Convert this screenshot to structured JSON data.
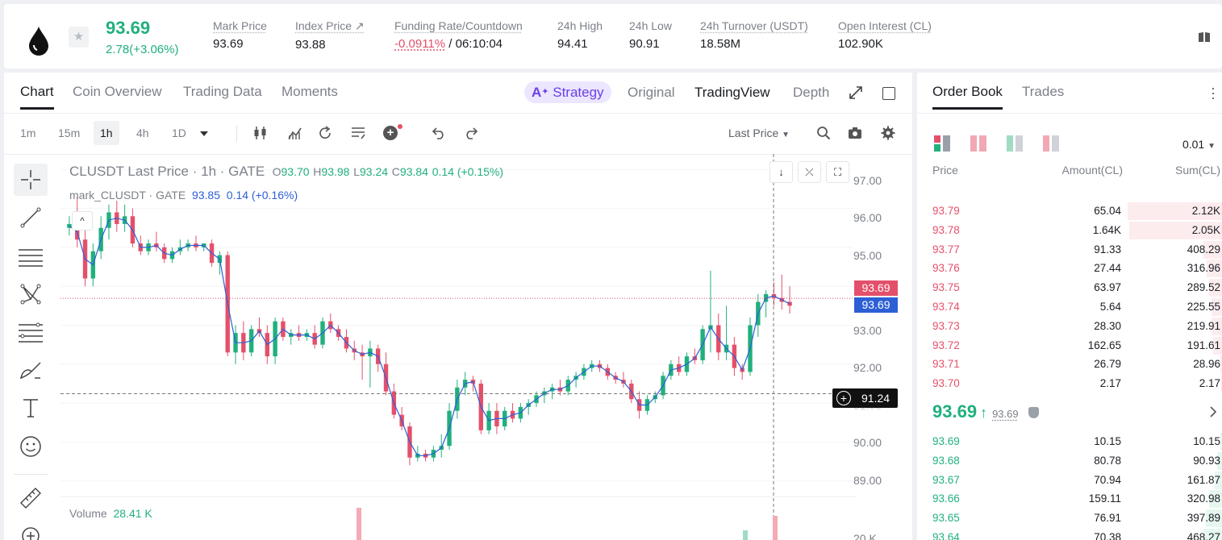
{
  "ticker": {
    "last_price": "93.69",
    "change": "2.78(+3.06%)",
    "stats": [
      {
        "label": "Mark Price",
        "value": "93.69"
      },
      {
        "label": "Index Price ↗",
        "value": "93.88"
      },
      {
        "label": "Funding Rate/Countdown",
        "value_neg": "-0.0911%",
        "value": " / 06:10:04"
      },
      {
        "label": "24h High",
        "value": "94.41"
      },
      {
        "label": "24h Low",
        "value": "90.91"
      },
      {
        "label": "24h Turnover (USDT)",
        "value": "18.58M"
      },
      {
        "label": "Open Interest (CL)",
        "value": "102.90K"
      }
    ]
  },
  "chart_tabs": [
    "Chart",
    "Coin Overview",
    "Trading Data",
    "Moments"
  ],
  "strategy_label": "Strategy",
  "chart_modes": [
    "Original",
    "TradingView",
    "Depth"
  ],
  "intervals": [
    "1m",
    "15m",
    "1h",
    "4h",
    "1D"
  ],
  "price_source": "Last Price",
  "legend": {
    "title": "CLUSDT Last Price · 1h · GATE",
    "open_k": "O",
    "open": "93.70",
    "high_k": "H",
    "high": "93.98",
    "low_k": "L",
    "low": "93.24",
    "close_k": "C",
    "close": "93.84",
    "change": "0.14 (+0.15%)",
    "mark_label": "mark_CLUSDT · GATE",
    "mark_value": "93.85",
    "mark_change": "0.14 (+0.16%)"
  },
  "volume": {
    "label": "Volume",
    "value": "28.41 K",
    "axis_label": "20 K"
  },
  "y_axis_ticks": [
    "97.00",
    "96.00",
    "95.00",
    "93.00",
    "92.00",
    "91.00",
    "90.00",
    "89.00"
  ],
  "price_tags": {
    "last": "93.69",
    "mark": "93.69",
    "crosshair": "91.24"
  },
  "colors": {
    "up": "#21b07d",
    "down": "#e4506a",
    "accent": "#6b3fe8",
    "mark": "#2c5fd6"
  },
  "chart_data": {
    "type": "candlestick",
    "interval": "1h",
    "ylim": [
      88.6,
      97.4
    ],
    "y_ticks": [
      97,
      96,
      95,
      94,
      93,
      92,
      91,
      90,
      89
    ],
    "candles": [
      [
        95.5,
        95.8,
        95.3,
        95.6
      ],
      [
        95.6,
        96.3,
        95.0,
        95.2
      ],
      [
        95.2,
        95.6,
        94.0,
        94.2
      ],
      [
        94.2,
        95.1,
        94.0,
        94.9
      ],
      [
        94.9,
        95.8,
        94.7,
        95.5
      ],
      [
        95.5,
        96.1,
        95.2,
        95.9
      ],
      [
        95.9,
        96.2,
        95.4,
        95.6
      ],
      [
        95.6,
        96.1,
        95.4,
        95.8
      ],
      [
        95.8,
        96.0,
        95.0,
        95.1
      ],
      [
        95.1,
        95.3,
        94.8,
        94.9
      ],
      [
        94.9,
        95.2,
        94.8,
        95.1
      ],
      [
        95.1,
        95.4,
        94.9,
        95.0
      ],
      [
        95.0,
        95.1,
        94.6,
        94.7
      ],
      [
        94.7,
        95.0,
        94.6,
        94.9
      ],
      [
        94.9,
        95.2,
        94.8,
        95.0
      ],
      [
        95.0,
        95.2,
        94.9,
        95.1
      ],
      [
        95.1,
        95.3,
        94.9,
        95.0
      ],
      [
        95.0,
        95.1,
        94.9,
        95.1
      ],
      [
        95.1,
        95.2,
        94.5,
        94.6
      ],
      [
        94.6,
        94.9,
        94.3,
        94.8
      ],
      [
        94.8,
        94.9,
        92.2,
        92.3
      ],
      [
        92.3,
        93.0,
        92.0,
        92.8
      ],
      [
        92.8,
        93.1,
        92.1,
        92.3
      ],
      [
        92.3,
        93.0,
        92.2,
        92.9
      ],
      [
        92.9,
        93.2,
        92.7,
        92.8
      ],
      [
        92.8,
        93.0,
        92.0,
        92.2
      ],
      [
        92.2,
        93.2,
        92.0,
        93.1
      ],
      [
        93.1,
        93.2,
        92.6,
        92.7
      ],
      [
        92.7,
        92.9,
        92.5,
        92.8
      ],
      [
        92.8,
        93.0,
        92.6,
        92.7
      ],
      [
        92.7,
        92.9,
        92.6,
        92.8
      ],
      [
        92.8,
        93.0,
        92.4,
        92.5
      ],
      [
        92.5,
        93.2,
        92.4,
        93.1
      ],
      [
        93.1,
        93.3,
        92.8,
        92.9
      ],
      [
        92.9,
        93.0,
        92.6,
        92.7
      ],
      [
        92.7,
        92.9,
        92.3,
        92.4
      ],
      [
        92.4,
        92.6,
        92.1,
        92.3
      ],
      [
        92.3,
        92.5,
        91.6,
        92.2
      ],
      [
        92.2,
        92.6,
        91.4,
        92.4
      ],
      [
        92.4,
        92.5,
        91.8,
        92.0
      ],
      [
        92.0,
        92.3,
        91.2,
        91.3
      ],
      [
        91.3,
        91.5,
        90.6,
        90.7
      ],
      [
        90.7,
        90.9,
        90.3,
        90.4
      ],
      [
        90.4,
        90.5,
        89.4,
        89.6
      ],
      [
        89.6,
        89.9,
        89.5,
        89.7
      ],
      [
        89.7,
        89.8,
        89.5,
        89.6
      ],
      [
        89.6,
        89.9,
        89.5,
        89.8
      ],
      [
        89.8,
        90.2,
        89.6,
        89.9
      ],
      [
        89.9,
        91.0,
        89.8,
        90.8
      ],
      [
        90.8,
        91.6,
        90.6,
        91.4
      ],
      [
        91.4,
        91.8,
        91.2,
        91.6
      ],
      [
        91.6,
        91.7,
        91.3,
        91.5
      ],
      [
        91.5,
        91.6,
        90.2,
        90.3
      ],
      [
        90.3,
        91.0,
        90.2,
        90.8
      ],
      [
        90.8,
        91.0,
        90.2,
        90.4
      ],
      [
        90.4,
        90.9,
        90.3,
        90.8
      ],
      [
        90.8,
        91.0,
        90.5,
        90.6
      ],
      [
        90.6,
        91.0,
        90.5,
        90.9
      ],
      [
        90.9,
        91.1,
        90.7,
        91.0
      ],
      [
        91.0,
        91.3,
        90.9,
        91.2
      ],
      [
        91.2,
        91.4,
        91.0,
        91.3
      ],
      [
        91.3,
        91.5,
        91.1,
        91.4
      ],
      [
        91.4,
        91.6,
        91.2,
        91.3
      ],
      [
        91.3,
        91.7,
        91.2,
        91.6
      ],
      [
        91.6,
        91.8,
        91.4,
        91.7
      ],
      [
        91.7,
        92.0,
        91.6,
        91.9
      ],
      [
        91.9,
        92.1,
        91.8,
        92.0
      ],
      [
        92.0,
        92.1,
        91.8,
        91.9
      ],
      [
        91.9,
        92.0,
        91.6,
        91.7
      ],
      [
        91.7,
        91.8,
        91.5,
        91.6
      ],
      [
        91.6,
        91.8,
        91.4,
        91.5
      ],
      [
        91.5,
        91.6,
        91.0,
        91.1
      ],
      [
        91.1,
        91.3,
        90.6,
        90.8
      ],
      [
        90.8,
        91.2,
        90.7,
        91.1
      ],
      [
        91.1,
        91.3,
        91.0,
        91.2
      ],
      [
        91.2,
        91.8,
        91.1,
        91.7
      ],
      [
        91.7,
        92.1,
        91.6,
        92.0
      ],
      [
        92.0,
        92.2,
        91.7,
        91.8
      ],
      [
        91.8,
        92.3,
        91.7,
        92.2
      ],
      [
        92.2,
        92.4,
        92.0,
        92.1
      ],
      [
        92.1,
        93.0,
        92.0,
        92.9
      ],
      [
        92.9,
        94.4,
        92.3,
        93.0
      ],
      [
        93.0,
        93.3,
        92.1,
        92.3
      ],
      [
        92.3,
        93.5,
        92.1,
        92.5
      ],
      [
        92.5,
        92.7,
        91.7,
        91.9
      ],
      [
        91.9,
        92.0,
        91.6,
        91.8
      ],
      [
        91.8,
        93.2,
        91.7,
        93.0
      ],
      [
        93.0,
        93.8,
        92.7,
        93.6
      ],
      [
        93.6,
        93.9,
        93.2,
        93.8
      ],
      [
        93.8,
        94.1,
        93.5,
        93.7
      ],
      [
        93.7,
        94.3,
        93.4,
        93.6
      ],
      [
        93.6,
        94.0,
        93.3,
        93.5
      ]
    ]
  },
  "book_tabs": [
    "Order Book",
    "Trades"
  ],
  "book_precision": "0.01",
  "book_headers": {
    "price": "Price",
    "amount": "Amount(CL)",
    "sum": "Sum(CL)"
  },
  "asks": [
    {
      "price": "93.79",
      "amount": "65.04",
      "sum": "2.12K"
    },
    {
      "price": "93.78",
      "amount": "1.64K",
      "sum": "2.05K"
    },
    {
      "price": "93.77",
      "amount": "91.33",
      "sum": "408.29"
    },
    {
      "price": "93.76",
      "amount": "27.44",
      "sum": "316.96"
    },
    {
      "price": "93.75",
      "amount": "63.97",
      "sum": "289.52"
    },
    {
      "price": "93.74",
      "amount": "5.64",
      "sum": "225.55"
    },
    {
      "price": "93.73",
      "amount": "28.30",
      "sum": "219.91"
    },
    {
      "price": "93.72",
      "amount": "162.65",
      "sum": "191.61"
    },
    {
      "price": "93.71",
      "amount": "26.79",
      "sum": "28.96"
    },
    {
      "price": "93.70",
      "amount": "2.17",
      "sum": "2.17"
    }
  ],
  "mid_price": {
    "price": "93.69",
    "arrow": "↑",
    "mark": "93.69"
  },
  "bids": [
    {
      "price": "93.69",
      "amount": "10.15",
      "sum": "10.15"
    },
    {
      "price": "93.68",
      "amount": "80.78",
      "sum": "90.93"
    },
    {
      "price": "93.67",
      "amount": "70.94",
      "sum": "161.87"
    },
    {
      "price": "93.66",
      "amount": "159.11",
      "sum": "320.98"
    },
    {
      "price": "93.65",
      "amount": "76.91",
      "sum": "397.89"
    },
    {
      "price": "93.64",
      "amount": "70.38",
      "sum": "468.27"
    }
  ],
  "ask_depth_frac": [
    1.0,
    0.98,
    0.2,
    0.16,
    0.14,
    0.11,
    0.11,
    0.09,
    0.02,
    0.01
  ],
  "bid_depth_frac": [
    0.02,
    0.05,
    0.08,
    0.14,
    0.17,
    0.2
  ]
}
